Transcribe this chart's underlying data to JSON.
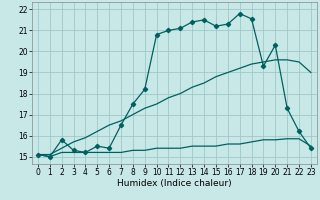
{
  "bg_color": "#c8e8e8",
  "grid_color": "#a0c8c8",
  "line_color": "#006060",
  "xlabel": "Humidex (Indice chaleur)",
  "xlim": [
    -0.5,
    23.5
  ],
  "ylim": [
    14.65,
    22.35
  ],
  "yticks": [
    15,
    16,
    17,
    18,
    19,
    20,
    21,
    22
  ],
  "xticks": [
    0,
    1,
    2,
    3,
    4,
    5,
    6,
    7,
    8,
    9,
    10,
    11,
    12,
    13,
    14,
    15,
    16,
    17,
    18,
    19,
    20,
    21,
    22,
    23
  ],
  "curve1_x": [
    0,
    1,
    2,
    3,
    4,
    5,
    6,
    7,
    8,
    9,
    10,
    11,
    12,
    13,
    14,
    15,
    16,
    17,
    18,
    19,
    20,
    21,
    22,
    23
  ],
  "curve1_y": [
    15.1,
    15.0,
    15.2,
    15.2,
    15.2,
    15.2,
    15.2,
    15.2,
    15.3,
    15.3,
    15.4,
    15.4,
    15.4,
    15.5,
    15.5,
    15.5,
    15.6,
    15.6,
    15.7,
    15.8,
    15.8,
    15.85,
    15.85,
    15.5
  ],
  "curve2_x": [
    0,
    1,
    2,
    3,
    4,
    5,
    6,
    7,
    8,
    9,
    10,
    11,
    12,
    13,
    14,
    15,
    16,
    17,
    18,
    19,
    20,
    21,
    22,
    23
  ],
  "curve2_y": [
    15.1,
    15.1,
    15.4,
    15.7,
    15.9,
    16.2,
    16.5,
    16.7,
    17.0,
    17.3,
    17.5,
    17.8,
    18.0,
    18.3,
    18.5,
    18.8,
    19.0,
    19.2,
    19.4,
    19.5,
    19.6,
    19.6,
    19.5,
    19.0
  ],
  "curve3_x": [
    0,
    1,
    2,
    3,
    4,
    5,
    6,
    7,
    8,
    9,
    10,
    11,
    12,
    13,
    14,
    15,
    16,
    17,
    18,
    19,
    20,
    21,
    22,
    23
  ],
  "curve3_y": [
    15.1,
    15.0,
    15.8,
    15.3,
    15.2,
    15.5,
    15.4,
    16.5,
    17.5,
    18.2,
    20.8,
    21.0,
    21.1,
    21.4,
    21.5,
    21.2,
    21.3,
    21.8,
    21.55,
    19.3,
    20.3,
    17.3,
    16.2,
    15.4
  ],
  "linewidth": 0.9,
  "markersize": 2.2,
  "marker": "D"
}
